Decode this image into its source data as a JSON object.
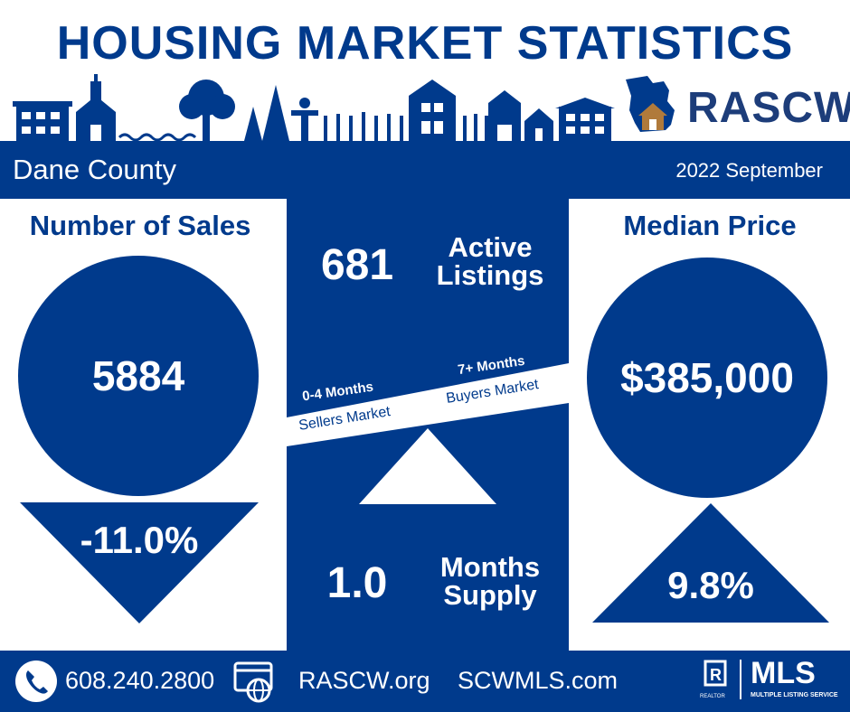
{
  "title": "HOUSING MARKET STATISTICS",
  "brand": {
    "name": "RASCW"
  },
  "header": {
    "county": "Dane County",
    "period": "2022 September"
  },
  "sales": {
    "heading": "Number of Sales",
    "value": "5884",
    "change": "-11.0%",
    "direction": "down"
  },
  "center": {
    "active_value": "681",
    "active_label_1": "Active",
    "active_label_2": "Listings",
    "seller_range": "0-4 Months",
    "seller_label": "Sellers Market",
    "buyer_range": "7+ Months",
    "buyer_label": "Buyers Market",
    "supply_value": "1.0",
    "supply_label_1": "Months",
    "supply_label_2": "Supply"
  },
  "price": {
    "heading": "Median Price",
    "value": "$385,000",
    "change": "9.8%",
    "direction": "up"
  },
  "footer": {
    "phone": "608.240.2800",
    "site1": "RASCW.org",
    "site2": "SCWMLS.com",
    "mls": "MLS",
    "mls_sub": "MULTIPLE LISTING SERVICE",
    "realtor": "REALTOR"
  },
  "colors": {
    "navy": "#003a8c",
    "white": "#ffffff",
    "brown": "#b07a3b"
  }
}
